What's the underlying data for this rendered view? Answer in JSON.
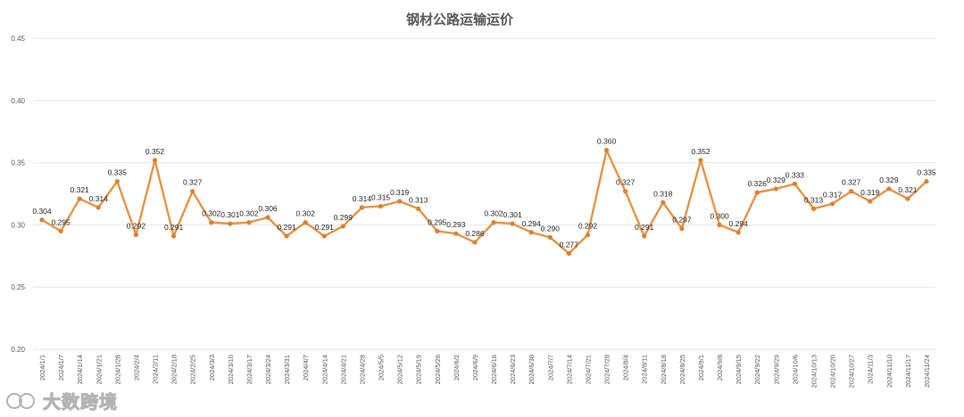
{
  "chart_data": {
    "type": "line",
    "title": "钢材公路运输运价",
    "xlabel": "",
    "ylabel": "",
    "ylim": [
      0.2,
      0.45
    ],
    "yticks": [
      "0.20",
      "0.25",
      "0.30",
      "0.35",
      "0.40",
      "0.45"
    ],
    "grid": true,
    "legend": "none",
    "categories": [
      "2024/1/1",
      "2024/1/7",
      "2024/1/14",
      "2024/1/21",
      "2024/1/28",
      "2024/2/4",
      "2024/2/11",
      "2024/2/18",
      "2024/2/25",
      "2024/3/3",
      "2024/3/10",
      "2024/3/17",
      "2024/3/24",
      "2024/3/31",
      "2024/4/7",
      "2024/4/14",
      "2024/4/21",
      "2024/4/28",
      "2024/5/5",
      "2024/5/12",
      "2024/5/19",
      "2024/5/26",
      "2024/6/2",
      "2024/6/9",
      "2024/6/16",
      "2024/6/23",
      "2024/6/30",
      "2024/7/7",
      "2024/7/14",
      "2024/7/21",
      "2024/7/28",
      "2024/8/4",
      "2024/8/11",
      "2024/8/18",
      "2024/8/25",
      "2024/9/1",
      "2024/9/8",
      "2024/9/15",
      "2024/9/22",
      "2024/9/29",
      "2024/10/6",
      "2024/10/13",
      "2024/10/20",
      "2024/10/27",
      "2024/11/3",
      "2024/11/10",
      "2024/11/17",
      "2024/11/24"
    ],
    "series": [
      {
        "values": [
          0.304,
          0.295,
          0.321,
          0.314,
          0.335,
          0.292,
          0.352,
          0.291,
          0.327,
          0.302,
          0.301,
          0.302,
          0.306,
          0.291,
          0.302,
          0.291,
          0.299,
          0.314,
          0.315,
          0.319,
          0.313,
          0.295,
          0.293,
          0.286,
          0.302,
          0.301,
          0.294,
          0.29,
          0.277,
          0.292,
          0.36,
          0.327,
          0.291,
          0.318,
          0.297,
          0.352,
          0.3,
          0.294,
          0.326,
          0.329,
          0.333,
          0.313,
          0.317,
          0.327,
          0.319,
          0.329,
          0.321,
          0.335
        ],
        "labels": [
          "0.304",
          "0.295",
          "0.321",
          "0.314",
          "0.335",
          "0.292",
          "0.352",
          "0.291",
          "0.327",
          "0.302",
          "0.301",
          "0.302",
          "0.306",
          "0.291",
          "0.302",
          "0.291",
          "0.299",
          "0.314",
          "0.315",
          "0.319",
          "0.313",
          "0.295",
          "0.293",
          "0.286",
          "0.302",
          "0.301",
          "0.294",
          "0.290",
          "0.277",
          "0.292",
          "0.360",
          "0.327",
          "0.291",
          "0.318",
          "0.297",
          "0.352",
          "0.300",
          "0.294",
          "0.326",
          "0.329",
          "0.333",
          "0.313",
          "0.317",
          "0.327",
          "0.319",
          "0.329",
          "0.321",
          "0.335"
        ],
        "color": "#e59445"
      }
    ]
  },
  "watermark": {
    "text": "大数跨境",
    "icon": "brand-logo-icon"
  }
}
